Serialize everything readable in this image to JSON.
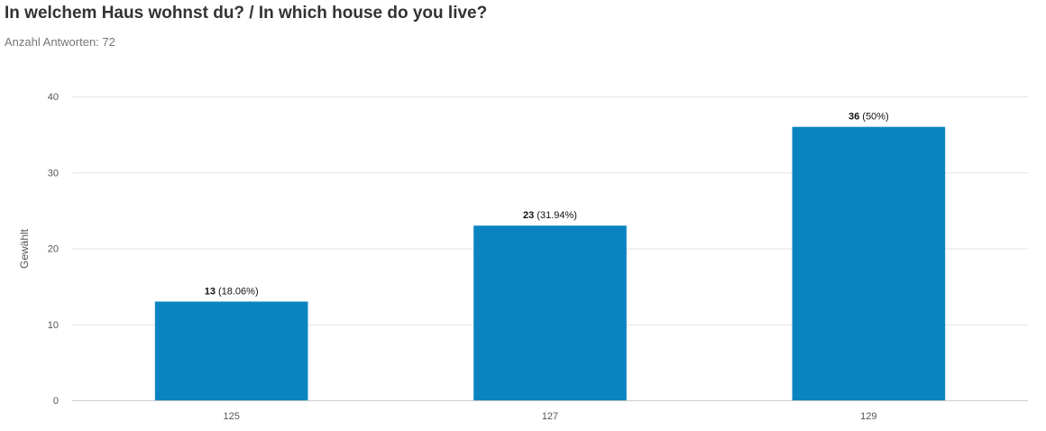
{
  "header": {
    "title": "In welchem Haus wohnst du? / In which house do you live?",
    "subtitle": "Anzahl Antworten: 72"
  },
  "colors": {
    "bar": "#0a84c1",
    "grid": "#e3e3e3",
    "baseline": "#cccccc"
  },
  "chart_data": {
    "type": "bar",
    "categories": [
      "125",
      "127",
      "129"
    ],
    "values": [
      13,
      23,
      36
    ],
    "percent_labels": [
      "(18.06%)",
      "(31.94%)",
      "(50%)"
    ],
    "ylabel": "Gewählt",
    "xlabel": "",
    "ylim": [
      0,
      40
    ],
    "yticks": [
      0,
      10,
      20,
      30,
      40
    ],
    "grid": true,
    "legend": "none"
  }
}
